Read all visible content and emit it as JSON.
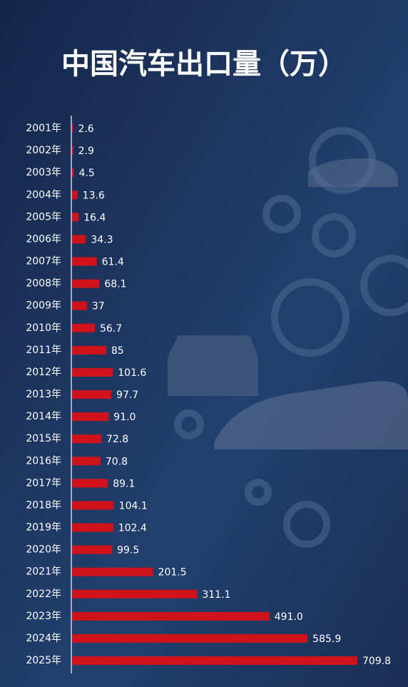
{
  "chart_data": {
    "type": "bar",
    "orientation": "horizontal",
    "title": "中国汽车出口量（万）",
    "categories": [
      "2001年",
      "2002年",
      "2003年",
      "2004年",
      "2005年",
      "2006年",
      "2007年",
      "2008年",
      "2009年",
      "2010年",
      "2011年",
      "2012年",
      "2013年",
      "2014年",
      "2015年",
      "2016年",
      "2017年",
      "2018年",
      "2019年",
      "2020年",
      "2021年",
      "2022年",
      "2023年",
      "2024年",
      "2025年"
    ],
    "values": [
      2.6,
      2.9,
      4.5,
      13.6,
      16.4,
      34.3,
      61.4,
      68.1,
      37,
      56.7,
      85,
      101.6,
      97.7,
      91.0,
      72.8,
      70.8,
      89.1,
      104.1,
      102.4,
      99.5,
      201.5,
      311.1,
      491.0,
      585.9,
      709.8
    ],
    "value_labels": [
      "2.6",
      "2.9",
      "4.5",
      "13.6",
      "16.4",
      "34.3",
      "61.4",
      "68.1",
      "37",
      "56.7",
      "85",
      "101.6",
      "97.7",
      "91.0",
      "72.8",
      "70.8",
      "89.1",
      "104.1",
      "102.4",
      "99.5",
      "201.5",
      "311.1",
      "491.0",
      "585.9",
      "709.8"
    ],
    "color": "#d0121b"
  }
}
